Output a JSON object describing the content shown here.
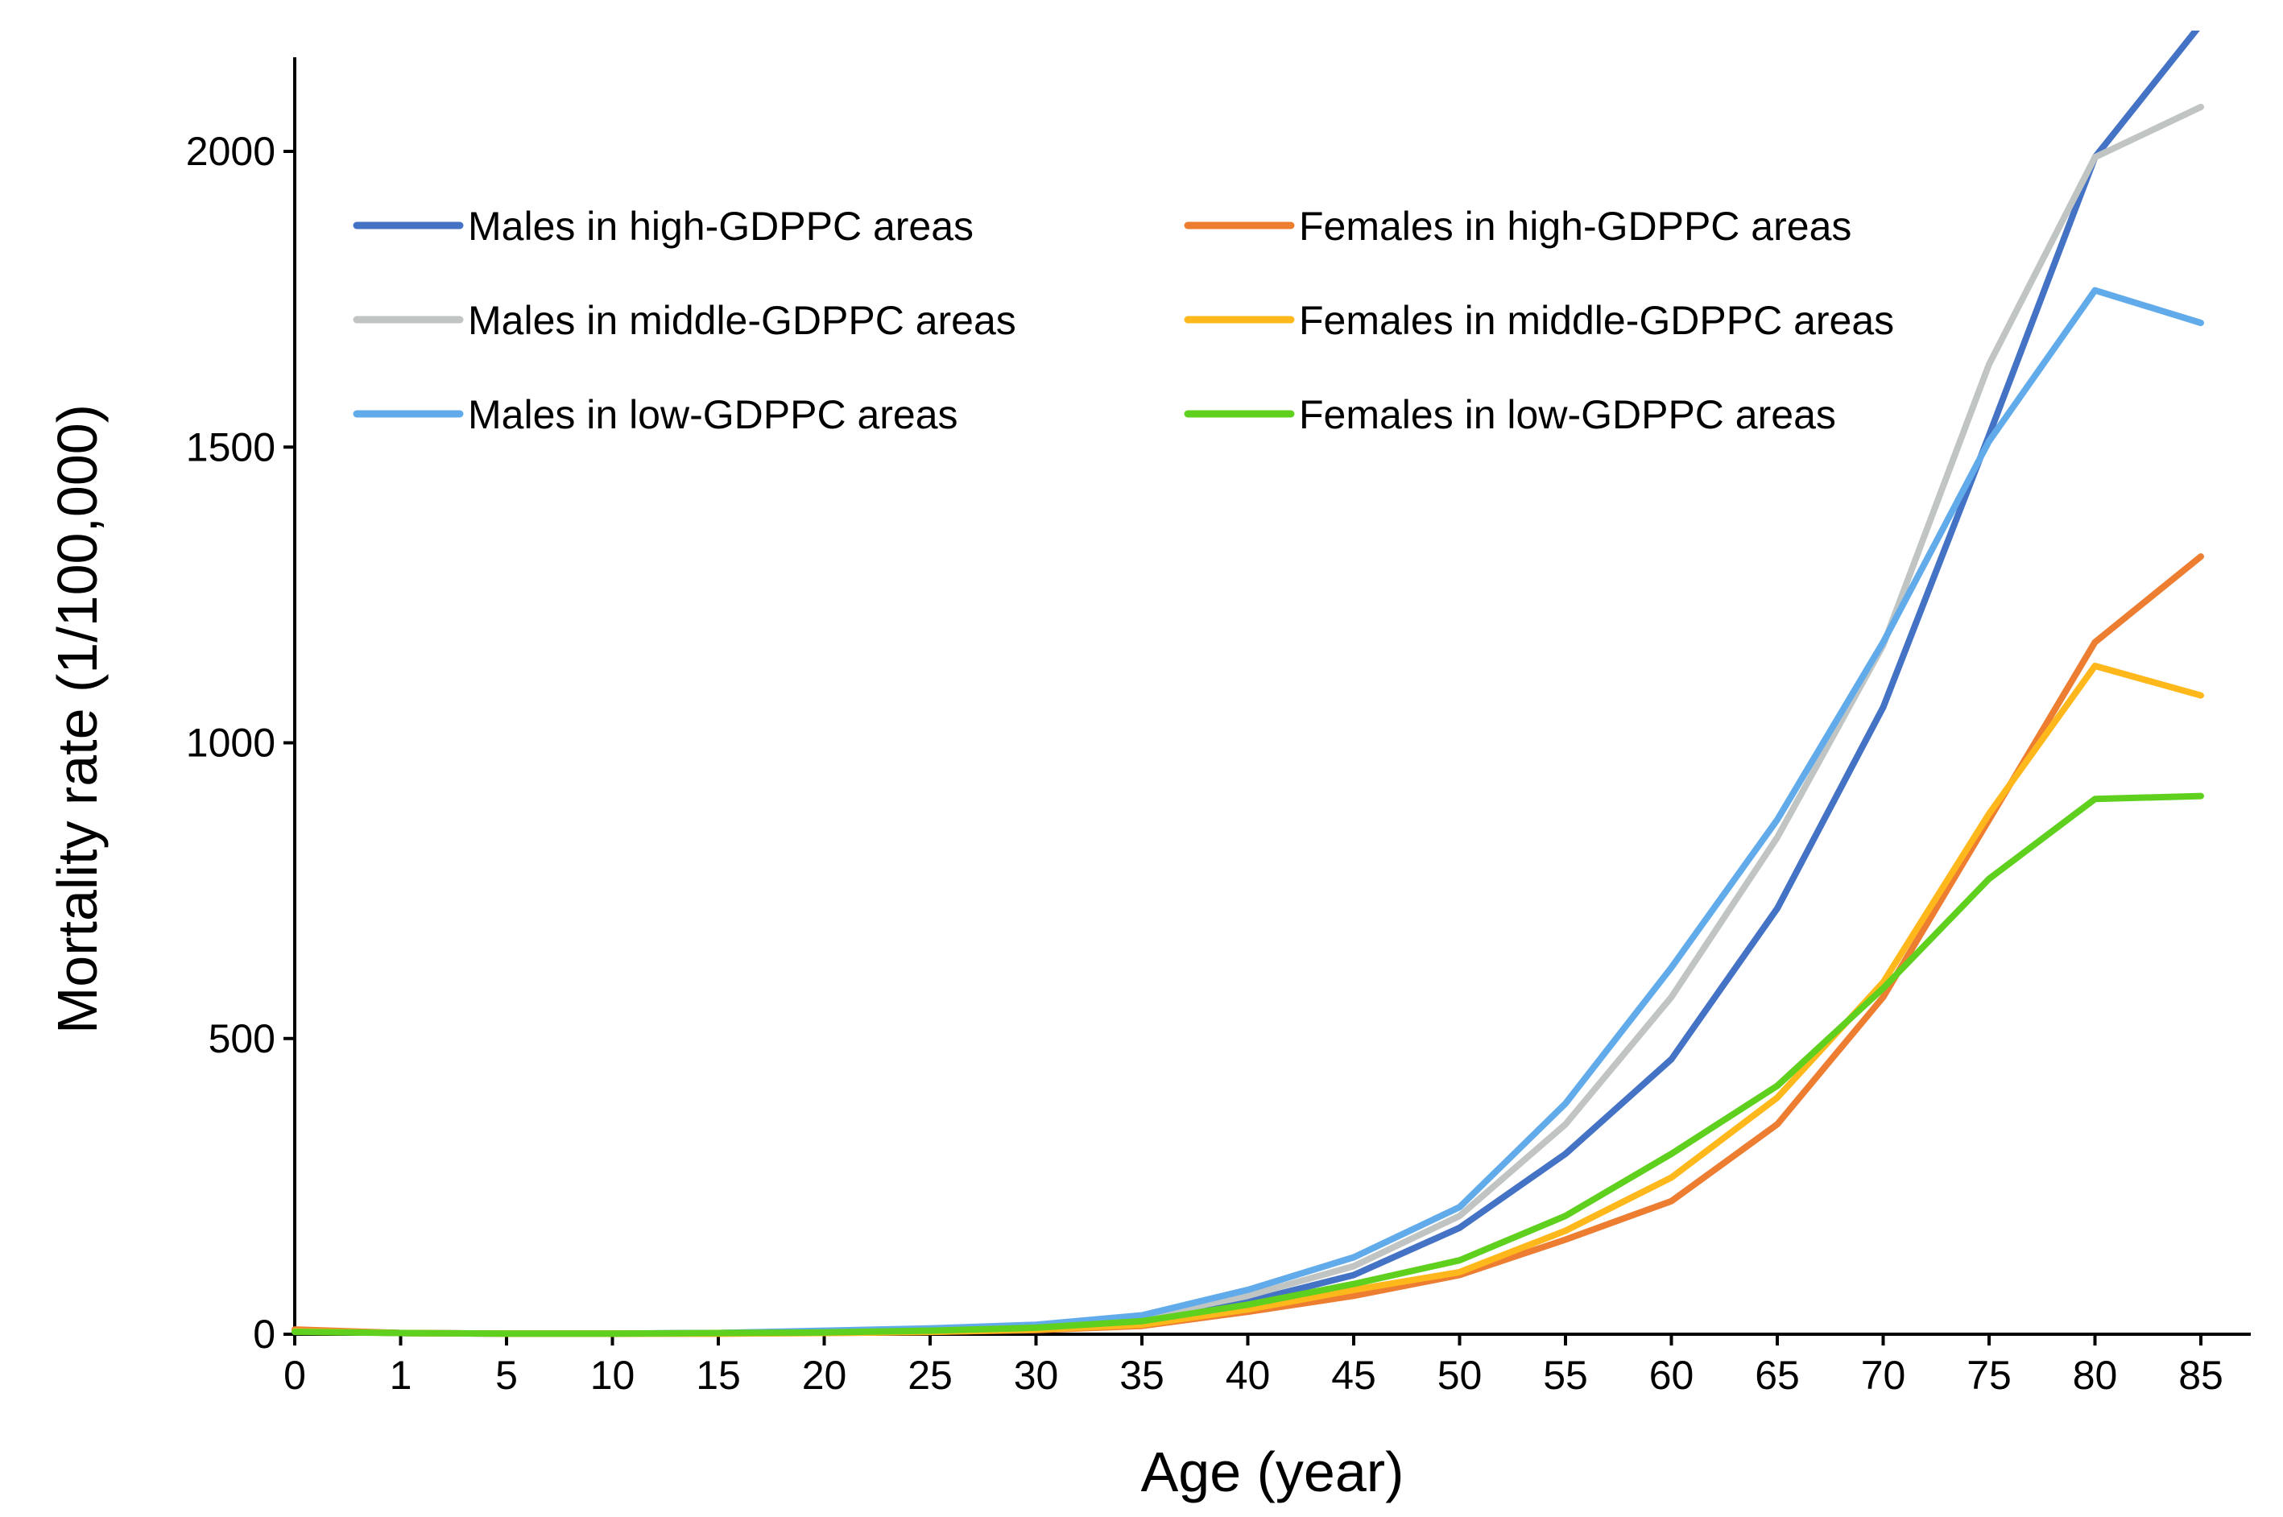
{
  "chart_data": {
    "type": "line",
    "title": "",
    "xlabel": "Age (year)",
    "ylabel": "Mortality rate (1/100,000)",
    "x": [
      "0",
      "1",
      "5",
      "10",
      "15",
      "20",
      "25",
      "30",
      "35",
      "40",
      "45",
      "50",
      "55",
      "60",
      "65",
      "70",
      "75",
      "80",
      "85"
    ],
    "ylim": [
      0,
      2200
    ],
    "yticks": [
      0,
      500,
      1000,
      1500,
      2000
    ],
    "grid": false,
    "legend_position": "top-left, inside plot, two columns",
    "series": [
      {
        "name": "Males in high-GDPPC areas",
        "color": "#4472C4",
        "values": [
          5,
          2,
          1,
          1,
          2,
          4,
          7,
          10,
          20,
          55,
          100,
          180,
          305,
          465,
          720,
          1060,
          1520,
          1990,
          2215
        ]
      },
      {
        "name": "Males in middle-GDPPC areas",
        "color": "#C0C5C4",
        "values": [
          5,
          2,
          1,
          1,
          2,
          5,
          9,
          15,
          28,
          65,
          115,
          200,
          355,
          570,
          840,
          1165,
          1640,
          1990,
          2075
        ]
      },
      {
        "name": "Males in low-GDPPC areas",
        "color": "#62ABEB",
        "values": [
          6,
          2,
          1,
          1,
          2,
          6,
          10,
          16,
          32,
          75,
          130,
          215,
          390,
          620,
          870,
          1170,
          1510,
          1765,
          1710
        ]
      },
      {
        "name": "Females in high-GDPPC areas",
        "color": "#ED7D31",
        "values": [
          8,
          2,
          1,
          1,
          1,
          2,
          4,
          7,
          14,
          38,
          65,
          100,
          160,
          225,
          355,
          570,
          870,
          1170,
          1315
        ]
      },
      {
        "name": "Females in middle-GDPPC areas",
        "color": "#FFB81C",
        "values": [
          5,
          2,
          1,
          1,
          1,
          2,
          4,
          8,
          16,
          42,
          75,
          105,
          175,
          265,
          400,
          595,
          880,
          1130,
          1080
        ]
      },
      {
        "name": "Females in low-GDPPC areas",
        "color": "#5FD01E",
        "values": [
          4,
          2,
          1,
          1,
          2,
          3,
          6,
          11,
          22,
          50,
          85,
          125,
          200,
          305,
          420,
          585,
          770,
          905,
          910
        ]
      }
    ]
  }
}
